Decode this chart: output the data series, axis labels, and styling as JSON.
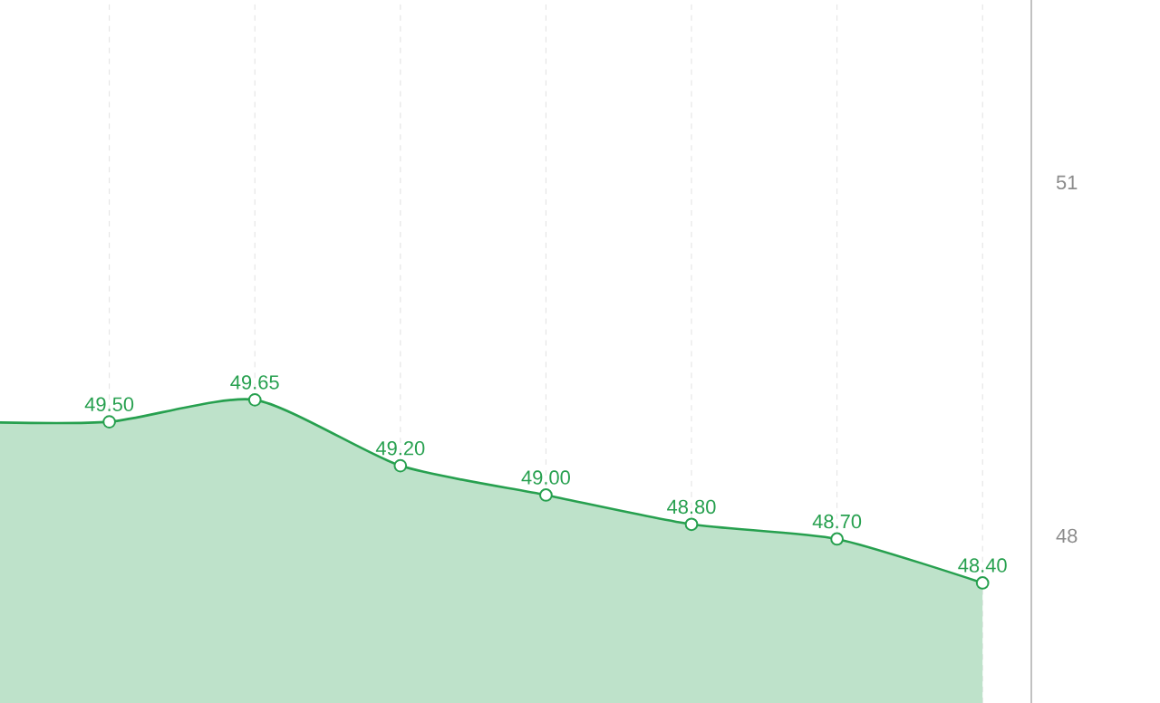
{
  "chart_data": {
    "type": "area",
    "categories": [
      null,
      null,
      null,
      null,
      null,
      null,
      null,
      null
    ],
    "series": [
      {
        "color": "#27a04f",
        "axis": "y2",
        "values": [
          49.5,
          49.5,
          49.65,
          49.2,
          49.0,
          48.8,
          48.7,
          48.4
        ],
        "value_labels": [
          null,
          "49.50",
          "49.65",
          "49.20",
          "49.00",
          "48.80",
          "48.70",
          "48.40"
        ]
      }
    ],
    "ylim": [
      46.58,
      52.55
    ],
    "yticks": [
      48,
      51
    ],
    "y2lim": [
      47.58,
      52.38
    ],
    "tick_labels": "y",
    "grid": "x",
    "marker": "circle",
    "line_style": "solid"
  }
}
